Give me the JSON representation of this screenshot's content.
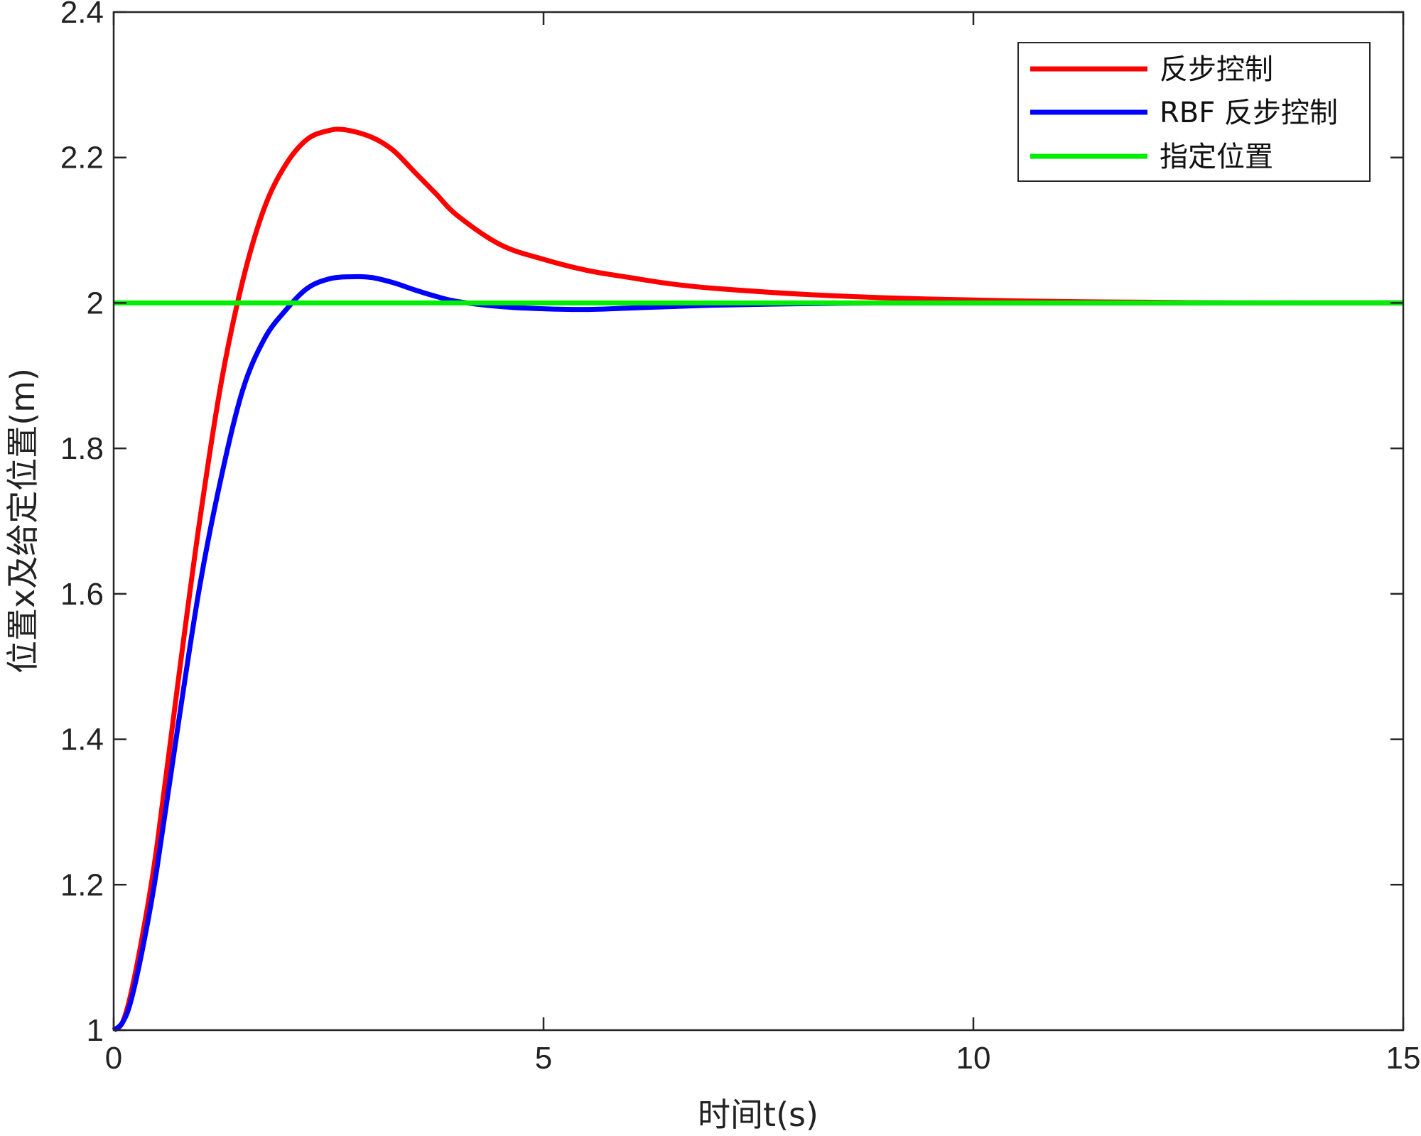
{
  "chart_data": {
    "type": "line",
    "xlabel": "时间t(s)",
    "ylabel": "位置x及给定位置(m)",
    "xlim": [
      0,
      15
    ],
    "ylim": [
      1,
      2.4
    ],
    "xticks": [
      0,
      5,
      10,
      15
    ],
    "xtick_labels": [
      "0",
      "5",
      "10",
      "15"
    ],
    "yticks": [
      1,
      1.2,
      1.4,
      1.6,
      1.8,
      2,
      2.2,
      2.4
    ],
    "ytick_labels": [
      "1",
      "1.2",
      "1.4",
      "1.6",
      "1.8",
      "2",
      "2.2",
      "2.4"
    ],
    "grid": false,
    "legend": {
      "position": "top-right"
    },
    "series": [
      {
        "name": "反步控制",
        "color": "#ff0000",
        "x": [
          0,
          0.1,
          0.2,
          0.35,
          0.5,
          0.75,
          1.0,
          1.25,
          1.5,
          1.75,
          2.0,
          2.25,
          2.5,
          2.7,
          3.0,
          3.25,
          3.5,
          3.75,
          4.0,
          4.5,
          5.0,
          5.5,
          6.0,
          6.5,
          7.0,
          8.0,
          9.0,
          10.0,
          11.0,
          12.0,
          13.0,
          14.0,
          15.0
        ],
        "y": [
          1.0,
          1.01,
          1.05,
          1.14,
          1.25,
          1.48,
          1.7,
          1.89,
          2.03,
          2.13,
          2.19,
          2.225,
          2.237,
          2.238,
          2.228,
          2.21,
          2.18,
          2.15,
          2.12,
          2.08,
          2.06,
          2.045,
          2.035,
          2.026,
          2.02,
          2.012,
          2.007,
          2.004,
          2.002,
          2.001,
          2.0,
          2.0,
          2.0
        ]
      },
      {
        "name": "RBF 反步控制",
        "color": "#0000ff",
        "x": [
          0,
          0.1,
          0.2,
          0.35,
          0.5,
          0.75,
          1.0,
          1.25,
          1.5,
          1.75,
          2.0,
          2.25,
          2.5,
          2.75,
          3.0,
          3.25,
          3.5,
          3.75,
          4.0,
          4.5,
          5.0,
          5.5,
          6.0,
          6.5,
          7.0,
          8.0,
          9.0,
          10.0,
          11.0,
          12.0,
          13.0,
          14.0,
          15.0
        ],
        "y": [
          1.0,
          1.01,
          1.04,
          1.12,
          1.22,
          1.42,
          1.61,
          1.76,
          1.88,
          1.95,
          1.99,
          2.02,
          2.033,
          2.036,
          2.035,
          2.028,
          2.018,
          2.009,
          2.002,
          1.995,
          1.992,
          1.991,
          1.993,
          1.995,
          1.997,
          1.999,
          2.0,
          2.0,
          2.0,
          2.0,
          2.0,
          2.0,
          2.0
        ]
      },
      {
        "name": "指定位置",
        "color": "#00ee00",
        "x": [
          0,
          15
        ],
        "y": [
          2.0,
          2.0
        ]
      }
    ]
  }
}
